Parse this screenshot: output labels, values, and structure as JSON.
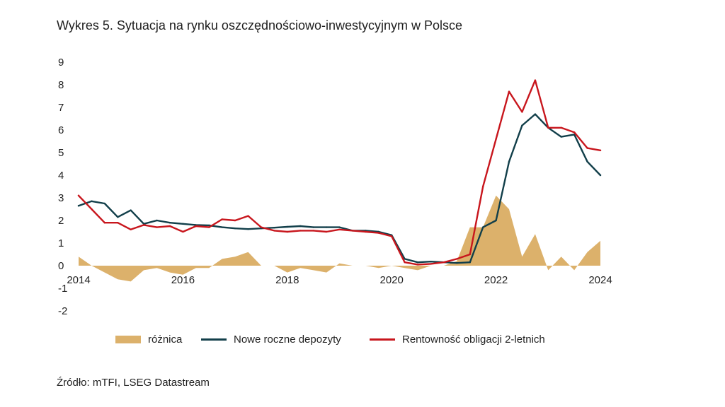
{
  "title": "Wykres 5. Sytuacja na rynku oszczędnościowo-inwestycyjnym w Polsce",
  "source": "Źródło: mTFI, LSEG Datastream",
  "colors": {
    "diff": "#dcb16b",
    "deposits": "#123f4a",
    "bonds": "#c8161d"
  },
  "chart_data": {
    "type": "line",
    "title": "Wykres 5. Sytuacja na rynku oszczędnościowo-inwestycyjnym w Polsce",
    "xlabel": "",
    "ylabel": "",
    "xlim": [
      2014.0,
      2024.0
    ],
    "ylim": [
      -2,
      9
    ],
    "x_ticks": [
      "2014",
      "2016",
      "2018",
      "2020",
      "2022",
      "2024"
    ],
    "y_ticks": [
      "-2",
      "-1",
      "0",
      "1",
      "2",
      "3",
      "4",
      "5",
      "6",
      "7",
      "8",
      "9"
    ],
    "grid": false,
    "legend_position": "bottom",
    "series": [
      {
        "name": "różnica",
        "kind": "area",
        "x": [
          2014.0,
          2014.25,
          2014.5,
          2014.75,
          2015.0,
          2015.25,
          2015.5,
          2015.75,
          2016.0,
          2016.25,
          2016.5,
          2016.75,
          2017.0,
          2017.25,
          2017.5,
          2017.75,
          2018.0,
          2018.25,
          2018.5,
          2018.75,
          2019.0,
          2019.25,
          2019.5,
          2019.75,
          2020.0,
          2020.25,
          2020.5,
          2020.75,
          2021.0,
          2021.25,
          2021.5,
          2021.75,
          2022.0,
          2022.25,
          2022.5,
          2022.75,
          2023.0,
          2023.25,
          2023.5,
          2023.75,
          2024.0
        ],
        "values": [
          0.4,
          0.0,
          -0.3,
          -0.6,
          -0.7,
          -0.2,
          -0.1,
          -0.3,
          -0.4,
          -0.1,
          -0.1,
          0.3,
          0.4,
          0.6,
          0.0,
          0.0,
          -0.3,
          -0.1,
          -0.2,
          -0.3,
          0.1,
          0.0,
          0.0,
          -0.1,
          0.0,
          -0.1,
          -0.2,
          0.0,
          0.0,
          0.2,
          1.7,
          1.7,
          3.1,
          2.5,
          0.4,
          1.4,
          -0.2,
          0.4,
          -0.2,
          0.6,
          1.1
        ]
      },
      {
        "name": "Nowe roczne depozyty",
        "kind": "line",
        "x": [
          2014.0,
          2014.25,
          2014.5,
          2014.75,
          2015.0,
          2015.25,
          2015.5,
          2015.75,
          2016.0,
          2016.25,
          2016.5,
          2016.75,
          2017.0,
          2017.25,
          2017.5,
          2017.75,
          2018.0,
          2018.25,
          2018.5,
          2018.75,
          2019.0,
          2019.25,
          2019.5,
          2019.75,
          2020.0,
          2020.25,
          2020.5,
          2020.75,
          2021.0,
          2021.25,
          2021.5,
          2021.75,
          2022.0,
          2022.25,
          2022.5,
          2022.75,
          2023.0,
          2023.25,
          2023.5,
          2023.75,
          2024.0
        ],
        "values": [
          2.65,
          2.85,
          2.75,
          2.15,
          2.45,
          1.85,
          2.0,
          1.9,
          1.85,
          1.8,
          1.78,
          1.7,
          1.65,
          1.62,
          1.65,
          1.68,
          1.72,
          1.75,
          1.7,
          1.7,
          1.7,
          1.55,
          1.55,
          1.5,
          1.35,
          0.3,
          0.15,
          0.18,
          0.15,
          0.12,
          0.15,
          1.7,
          2.0,
          4.6,
          6.2,
          6.7,
          6.1,
          5.7,
          5.8,
          4.6,
          4.0
        ]
      },
      {
        "name": "Rentowność obligacji 2-letnich",
        "kind": "line",
        "x": [
          2014.0,
          2014.25,
          2014.5,
          2014.75,
          2015.0,
          2015.25,
          2015.5,
          2015.75,
          2016.0,
          2016.25,
          2016.5,
          2016.75,
          2017.0,
          2017.25,
          2017.5,
          2017.75,
          2018.0,
          2018.25,
          2018.5,
          2018.75,
          2019.0,
          2019.25,
          2019.5,
          2019.75,
          2020.0,
          2020.25,
          2020.5,
          2020.75,
          2021.0,
          2021.25,
          2021.5,
          2021.75,
          2022.0,
          2022.25,
          2022.5,
          2022.75,
          2023.0,
          2023.25,
          2023.5,
          2023.75,
          2024.0
        ],
        "values": [
          3.1,
          2.5,
          1.9,
          1.9,
          1.6,
          1.8,
          1.7,
          1.75,
          1.5,
          1.75,
          1.7,
          2.05,
          2.0,
          2.2,
          1.7,
          1.55,
          1.5,
          1.55,
          1.55,
          1.5,
          1.6,
          1.55,
          1.5,
          1.45,
          1.3,
          0.15,
          0.05,
          0.08,
          0.15,
          0.3,
          0.5,
          3.5,
          5.6,
          7.7,
          6.8,
          8.2,
          6.1,
          6.1,
          5.9,
          5.2,
          5.1
        ]
      }
    ]
  }
}
